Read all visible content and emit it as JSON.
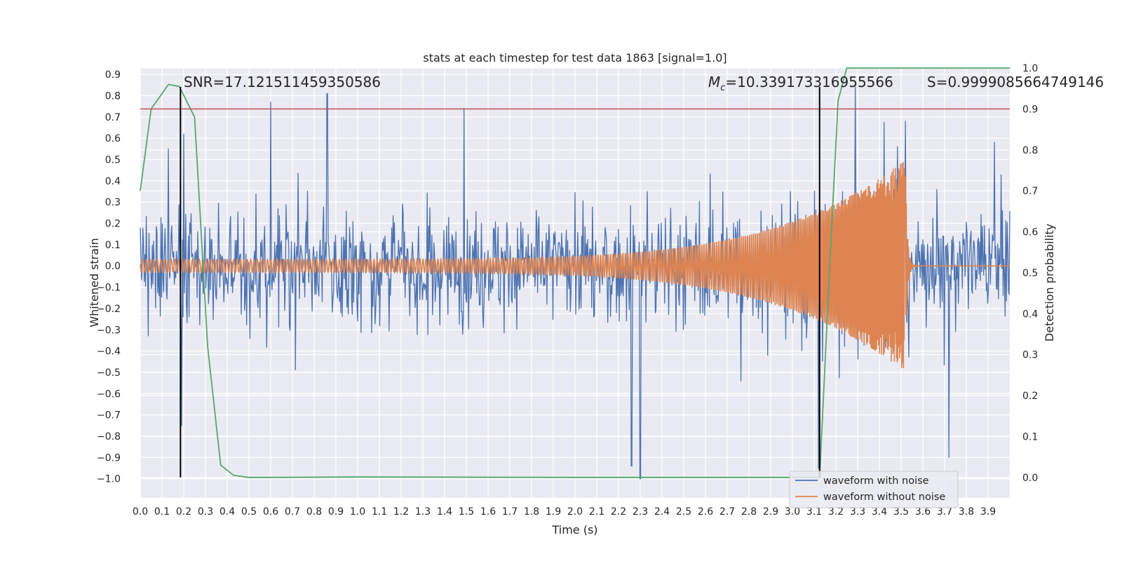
{
  "chart_data": {
    "type": "line",
    "title": "stats at each timestep for test data 1863 [signal=1.0]",
    "xlabel": "Time (s)",
    "ylabel": "Whitened strain",
    "y2label": "Detection probability",
    "xlim": [
      0.0,
      4.0
    ],
    "ylim": [
      -1.09,
      0.93
    ],
    "y2lim": [
      -0.05,
      1.0
    ],
    "xticks": [
      0.0,
      0.1,
      0.2,
      0.3,
      0.4,
      0.5,
      0.6,
      0.7,
      0.8,
      0.9,
      1.0,
      1.1,
      1.2,
      1.3,
      1.4,
      1.5,
      1.6,
      1.7,
      1.8,
      1.9,
      2.0,
      2.1,
      2.2,
      2.3,
      2.4,
      2.5,
      2.6,
      2.7,
      2.8,
      2.9,
      3.0,
      3.1,
      3.2,
      3.3,
      3.4,
      3.5,
      3.6,
      3.7,
      3.8,
      3.9
    ],
    "yticks": [
      0.9,
      0.8,
      0.7,
      0.6,
      0.5,
      0.4,
      0.3,
      0.2,
      0.1,
      0.0,
      -0.1,
      -0.2,
      -0.3,
      -0.4,
      -0.5,
      -0.6,
      -0.7,
      -0.8,
      -0.9,
      -1.0
    ],
    "y2ticks": [
      0.0,
      0.1,
      0.2,
      0.3,
      0.4,
      0.5,
      0.6,
      0.7,
      0.8,
      0.9,
      1.0
    ],
    "threshold": 0.9,
    "markers": [
      0.185,
      3.125
    ],
    "annotations": {
      "snr": "SNR=17.121511459350586",
      "mc_symbol": "M",
      "mc_sub": "c",
      "mc_value": "=10.339173316955566",
      "s": "S=0.9999085664749146"
    },
    "series": [
      {
        "name": "waveform with noise",
        "color": "#4c72b0",
        "noise_amplitude": 0.28,
        "peaks": [
          [
            0.13,
            0.55
          ],
          [
            0.19,
            -0.75
          ],
          [
            0.2,
            0.62
          ],
          [
            0.86,
            0.81
          ],
          [
            0.6,
            0.77
          ],
          [
            1.49,
            0.74
          ],
          [
            2.3,
            -1.0
          ],
          [
            2.26,
            -0.94
          ],
          [
            3.12,
            -0.95
          ],
          [
            3.29,
            0.84
          ],
          [
            3.52,
            0.68
          ],
          [
            3.72,
            -0.9
          ],
          [
            3.93,
            0.58
          ]
        ]
      },
      {
        "name": "waveform without noise",
        "color": "#dd8452",
        "amplitude_start": 0.03,
        "amplitude_end": 0.5,
        "t_merge": 3.52,
        "freq_start": 32,
        "freq_end": 300
      },
      {
        "name": "Detection probability",
        "color": "#55a868",
        "axis": "right",
        "x": [
          0.0,
          0.05,
          0.13,
          0.18,
          0.25,
          0.31,
          0.37,
          0.43,
          0.5,
          0.6,
          1.0,
          2.0,
          3.0,
          3.125,
          3.17,
          3.21,
          3.25,
          3.4,
          4.0
        ],
        "y": [
          0.7,
          0.9,
          0.96,
          0.955,
          0.88,
          0.32,
          0.03,
          0.005,
          0.0,
          0.0,
          0.001,
          0.0,
          0.0,
          0.0,
          0.5,
          0.92,
          1.0,
          1.0,
          1.0
        ]
      }
    ],
    "threshold_color": "#c44e52",
    "legend": {
      "position": "lower-right",
      "entries": [
        {
          "label": "waveform with noise",
          "color": "#4c72b0"
        },
        {
          "label": "waveform without noise",
          "color": "#dd8452"
        }
      ]
    }
  }
}
